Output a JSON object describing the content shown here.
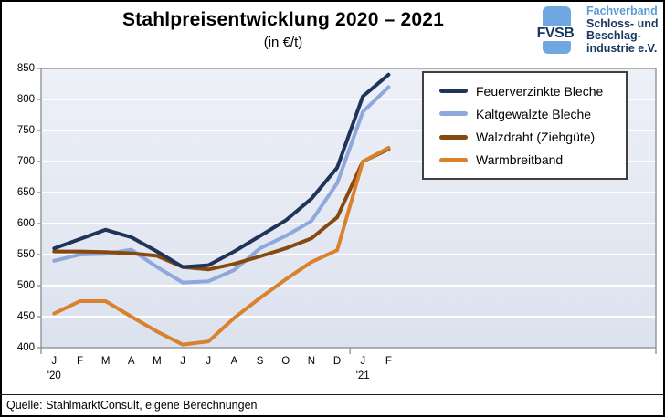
{
  "title": "Stahlpreisentwicklung  2020 – 2021",
  "subtitle": "(in €/t)",
  "source": "Quelle: StahlmarktConsult, eigene Berechnungen",
  "logo": {
    "abbr": "FVSB",
    "line1": "Fachverband",
    "line2": "Schloss- und",
    "line3": "Beschlag-",
    "line4": "industrie e.V.",
    "bar_color": "#6fa7e0",
    "light_text_color": "#5b9bd5",
    "dark_text_color": "#17375e"
  },
  "chart_data": {
    "type": "line",
    "title": "Stahlpreisentwicklung 2020 – 2021",
    "ylabel": "€/t",
    "ylim": [
      400,
      850
    ],
    "y_ticks": [
      850,
      800,
      750,
      700,
      650,
      600,
      550,
      500,
      450,
      400
    ],
    "grid": true,
    "legend_position": "top-right-inside",
    "x_tick_labels": [
      "J",
      "F",
      "M",
      "A",
      "M",
      "J",
      "J",
      "A",
      "S",
      "O",
      "N",
      "D",
      "J",
      "F"
    ],
    "year_labels": [
      {
        "text": "'20",
        "month_index": 0
      },
      {
        "text": "'21",
        "month_index": 12
      }
    ],
    "series": [
      {
        "name": "Feuerverzinkte Bleche",
        "color": "#203459",
        "values": [
          560,
          575,
          590,
          578,
          555,
          530,
          533,
          555,
          580,
          605,
          640,
          690,
          805,
          840
        ]
      },
      {
        "name": "Kaltgewalzte Bleche",
        "color": "#8ea7dc",
        "values": [
          540,
          550,
          551,
          558,
          530,
          505,
          507,
          525,
          560,
          580,
          604,
          665,
          780,
          820
        ]
      },
      {
        "name": "Walzdraht (Ziehgüte)",
        "color": "#86490e",
        "values": [
          555,
          555,
          554,
          552,
          548,
          530,
          526,
          535,
          547,
          560,
          576,
          610,
          700,
          720
        ]
      },
      {
        "name": "Warmbreitband",
        "color": "#d9812d",
        "values": [
          455,
          475,
          475,
          450,
          426,
          405,
          410,
          448,
          480,
          510,
          538,
          557,
          700,
          722
        ]
      }
    ],
    "colors": {
      "plot_bg_top": "#edf0f7",
      "plot_bg_bottom": "#dce2ee",
      "gridline": "#ffffff",
      "axis": "#8c8c8c"
    }
  }
}
